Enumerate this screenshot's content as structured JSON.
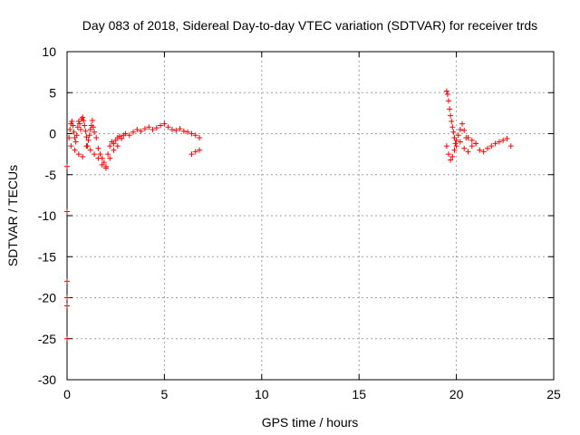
{
  "chart_data": {
    "type": "scatter",
    "title": "Day 083 of 2018, Sidereal Day-to-day VTEC variation (SDTVAR) for receiver trds",
    "xlabel": "GPS time / hours",
    "ylabel": "SDTVAR / TECUs",
    "xlim": [
      0,
      25
    ],
    "ylim": [
      -30,
      10
    ],
    "xticks": [
      0,
      5,
      10,
      15,
      20,
      25
    ],
    "yticks": [
      10,
      5,
      0,
      -5,
      -10,
      -15,
      -20,
      -25,
      -30
    ],
    "grid": true,
    "marker": "+",
    "series": [
      {
        "name": "SDTVAR",
        "color": "#ff0000",
        "x": [
          0.0,
          0.0,
          0.0,
          0.0,
          0.0,
          0.0,
          0.1,
          0.15,
          0.2,
          0.25,
          0.3,
          0.35,
          0.4,
          0.45,
          0.5,
          0.55,
          0.6,
          0.65,
          0.7,
          0.75,
          0.8,
          0.85,
          0.9,
          0.95,
          1.0,
          1.05,
          1.1,
          1.15,
          1.2,
          1.25,
          1.3,
          1.35,
          1.4,
          1.5,
          1.6,
          1.7,
          1.8,
          1.9,
          2.0,
          2.1,
          2.2,
          2.3,
          2.4,
          2.5,
          2.6,
          2.7,
          2.8,
          2.9,
          3.0,
          3.2,
          3.4,
          3.6,
          3.8,
          4.0,
          4.2,
          4.4,
          4.6,
          4.8,
          5.0,
          5.2,
          5.4,
          5.6,
          5.8,
          6.0,
          6.2,
          6.4,
          6.6,
          6.8,
          6.4,
          6.6,
          6.8,
          0.2,
          0.4,
          0.6,
          0.8,
          1.0,
          1.2,
          1.4,
          1.6,
          1.8,
          2.0,
          2.2,
          2.4,
          2.6,
          19.5,
          19.55,
          19.6,
          19.65,
          19.7,
          19.75,
          19.8,
          19.85,
          19.9,
          19.95,
          20.0,
          20.1,
          20.2,
          20.3,
          20.4,
          20.5,
          19.5,
          19.6,
          19.7,
          19.8,
          19.9,
          20.0,
          20.2,
          20.4,
          20.6,
          20.8,
          21.0,
          21.2,
          21.4,
          21.6,
          21.8,
          22.0,
          22.2,
          22.4,
          22.6,
          22.8,
          20.6,
          20.8,
          21.0
        ],
        "y": [
          -4,
          -9.5,
          -18,
          -20,
          -21,
          -25,
          -0.5,
          0.5,
          1.2,
          1.5,
          1.0,
          0.2,
          -0.5,
          -1.0,
          -0.2,
          0.8,
          1.5,
          1.2,
          0.5,
          1.8,
          2.0,
          1.6,
          1.0,
          0.3,
          -0.4,
          -1.5,
          -0.8,
          -0.2,
          0.5,
          1.0,
          1.6,
          0.8,
          0.2,
          -0.5,
          -1.8,
          -2.5,
          -3.0,
          -3.5,
          -4.0,
          -2.5,
          -1.5,
          -1.0,
          -1.2,
          -0.8,
          -0.5,
          -0.3,
          -0.6,
          -0.2,
          0.0,
          -0.2,
          0.2,
          0.5,
          0.3,
          0.6,
          0.8,
          0.5,
          0.7,
          1.0,
          1.2,
          0.8,
          0.5,
          0.4,
          0.6,
          0.3,
          0.2,
          0.0,
          -0.2,
          -0.5,
          -2.5,
          -2.2,
          -2.0,
          -1.5,
          -2.0,
          -2.5,
          -2.8,
          -1.5,
          -2.0,
          -2.5,
          -3.0,
          -3.8,
          -4.2,
          -3.0,
          -2.0,
          -1.5,
          5.2,
          4.8,
          4.0,
          3.0,
          2.2,
          1.5,
          0.8,
          0.2,
          -0.5,
          -1.2,
          -0.8,
          -0.2,
          0.5,
          1.2,
          0.4,
          -0.5,
          -1.5,
          -2.5,
          -3.2,
          -2.8,
          -2.0,
          -1.5,
          -1.0,
          -1.8,
          -2.2,
          -1.5,
          -1.2,
          -2.0,
          -2.2,
          -1.8,
          -1.5,
          -1.2,
          -1.0,
          -0.8,
          -0.6,
          -1.5,
          -0.5,
          -0.8,
          -1.2
        ]
      }
    ]
  }
}
